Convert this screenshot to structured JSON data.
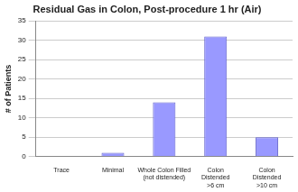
{
  "chart_data": {
    "type": "bar",
    "title": "Residual Gas in Colon, Post-procedure 1 hr (Air)",
    "y_label": "# of Patients",
    "categories": [
      "Trace",
      "Minimal",
      [
        "Whole Colon Filled",
        "(not distended)"
      ],
      [
        "Colon",
        "Distended",
        ">6 cm"
      ],
      [
        "Colon",
        "Distended",
        ">10 cm"
      ]
    ],
    "values": [
      0,
      1,
      14,
      31,
      5
    ],
    "color": "#9999ff",
    "ylim": [
      0,
      35
    ],
    "yticks": [
      0,
      5,
      10,
      15,
      20,
      25,
      30,
      35
    ],
    "grid": true
  }
}
